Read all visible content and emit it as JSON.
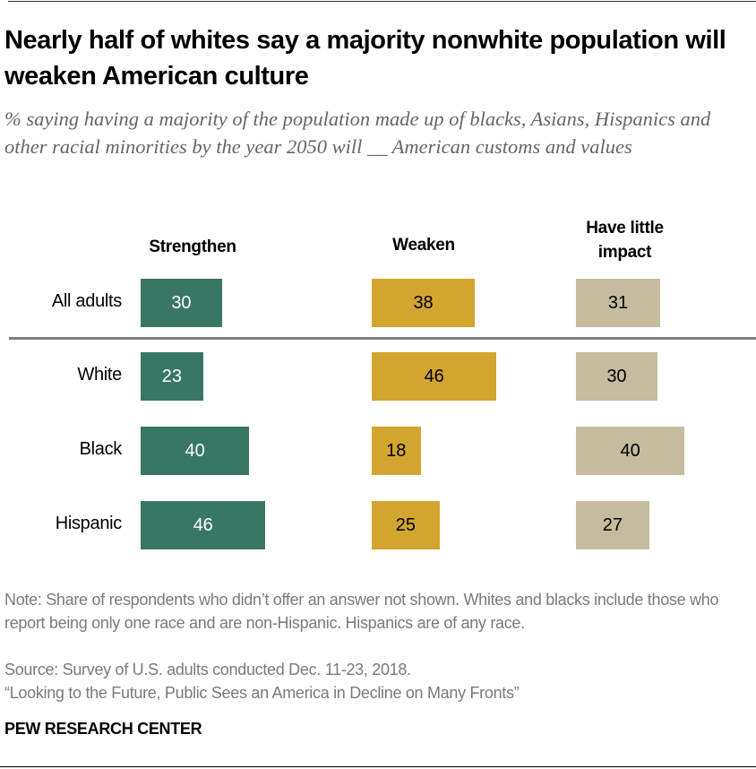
{
  "title": "Nearly half of whites say a majority nonwhite population will weaken American culture",
  "subtitle": "% saying having a majority of the population made up of blacks, Asians, Hispanics and other racial minorities by the year 2050 will __ American customs and values",
  "chart_data": {
    "type": "bar",
    "orientation": "horizontal",
    "categories": [
      "All adults",
      "White",
      "Black",
      "Hispanic"
    ],
    "series": [
      {
        "name": "Strengthen",
        "values": [
          30,
          23,
          40,
          46
        ],
        "color": "#387766",
        "label_color": "#ffffff"
      },
      {
        "name": "Weaken",
        "values": [
          38,
          46,
          18,
          25
        ],
        "color": "#d2a52e",
        "label_color": "#000000"
      },
      {
        "name": "Have little impact",
        "values": [
          31,
          30,
          40,
          27
        ],
        "color": "#c4bc9d",
        "label_color": "#000000"
      }
    ],
    "separator_after": "All adults",
    "grid": false
  },
  "footer": {
    "note": "Note: Share of respondents who didn’t offer an answer not shown. Whites and blacks include those who report being only one race and are non-Hispanic. Hispanics are of any race.",
    "source": "Source: Survey of U.S. adults conducted Dec. 11-23, 2018.",
    "report": "“Looking to the Future, Public Sees an America in Decline on Many Fronts”",
    "brand": "PEW RESEARCH CENTER"
  }
}
